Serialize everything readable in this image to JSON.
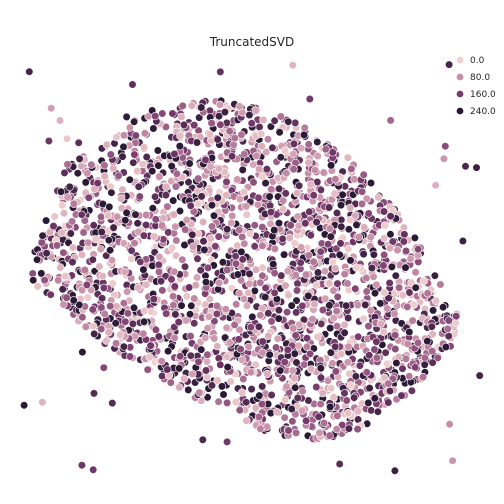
{
  "chart_data": {
    "type": "scatter",
    "title": "TruncatedSVD",
    "xlabel": "",
    "ylabel": "",
    "grid": false,
    "legend": {
      "placement": "top-right",
      "entries": [
        {
          "label": "0.0",
          "color": "#f0d0cf"
        },
        {
          "label": "80.0",
          "color": "#c88fa8"
        },
        {
          "label": "160.0",
          "color": "#7a3b6e"
        },
        {
          "label": "240.0",
          "color": "#2b1a36"
        }
      ]
    },
    "hue_range": [
      0,
      280
    ],
    "x_range": [
      -1,
      1
    ],
    "y_range": [
      -1,
      1
    ],
    "outline_color": "#ffffff"
  }
}
